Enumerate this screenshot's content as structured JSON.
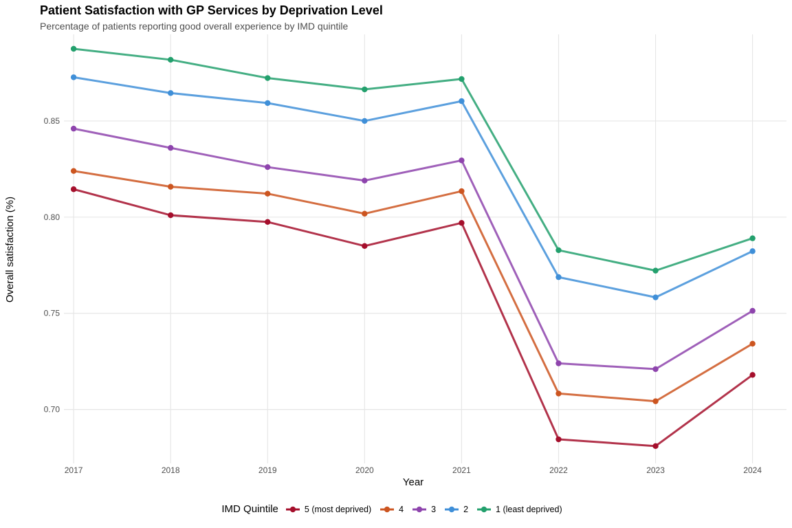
{
  "chart_data": {
    "type": "line",
    "title": "Patient Satisfaction with GP Services by Deprivation Level",
    "subtitle": "Percentage of patients reporting good overall experience by IMD quintile",
    "xlabel": "Year",
    "ylabel": "Overall satisfaction (%)",
    "x": [
      2017,
      2018,
      2019,
      2020,
      2021,
      2022,
      2023,
      2024
    ],
    "x_ticks": [
      "2017",
      "2018",
      "2019",
      "2020",
      "2021",
      "2022",
      "2023",
      "2024"
    ],
    "y_ticks": [
      "0.70",
      "0.75",
      "0.80",
      "0.85"
    ],
    "y_tick_values": [
      0.7,
      0.75,
      0.8,
      0.85
    ],
    "xlim": [
      2016.9,
      2024.35
    ],
    "ylim": [
      0.672,
      0.895
    ],
    "grid": true,
    "legend_title": "IMD Quintile",
    "legend_position": "bottom",
    "series": [
      {
        "name": "5 (most deprived)",
        "color": "#a50f2c",
        "values": [
          0.8145,
          0.801,
          0.7975,
          0.785,
          0.797,
          0.6845,
          0.681,
          0.718
        ]
      },
      {
        "name": "4",
        "color": "#cc5520",
        "values": [
          0.824,
          0.8158,
          0.8122,
          0.8018,
          0.8135,
          0.7083,
          0.7043,
          0.7342
        ]
      },
      {
        "name": "3",
        "color": "#8e44ad",
        "values": [
          0.846,
          0.836,
          0.826,
          0.819,
          0.8295,
          0.724,
          0.721,
          0.7513
        ]
      },
      {
        "name": "2",
        "color": "#3f8fd8",
        "values": [
          0.8727,
          0.8645,
          0.8593,
          0.85,
          0.8603,
          0.7688,
          0.7583,
          0.7823
        ]
      },
      {
        "name": "1 (least deprived)",
        "color": "#23a06d",
        "values": [
          0.8875,
          0.8818,
          0.8723,
          0.8664,
          0.8718,
          0.7828,
          0.7722,
          0.789
        ]
      }
    ]
  }
}
